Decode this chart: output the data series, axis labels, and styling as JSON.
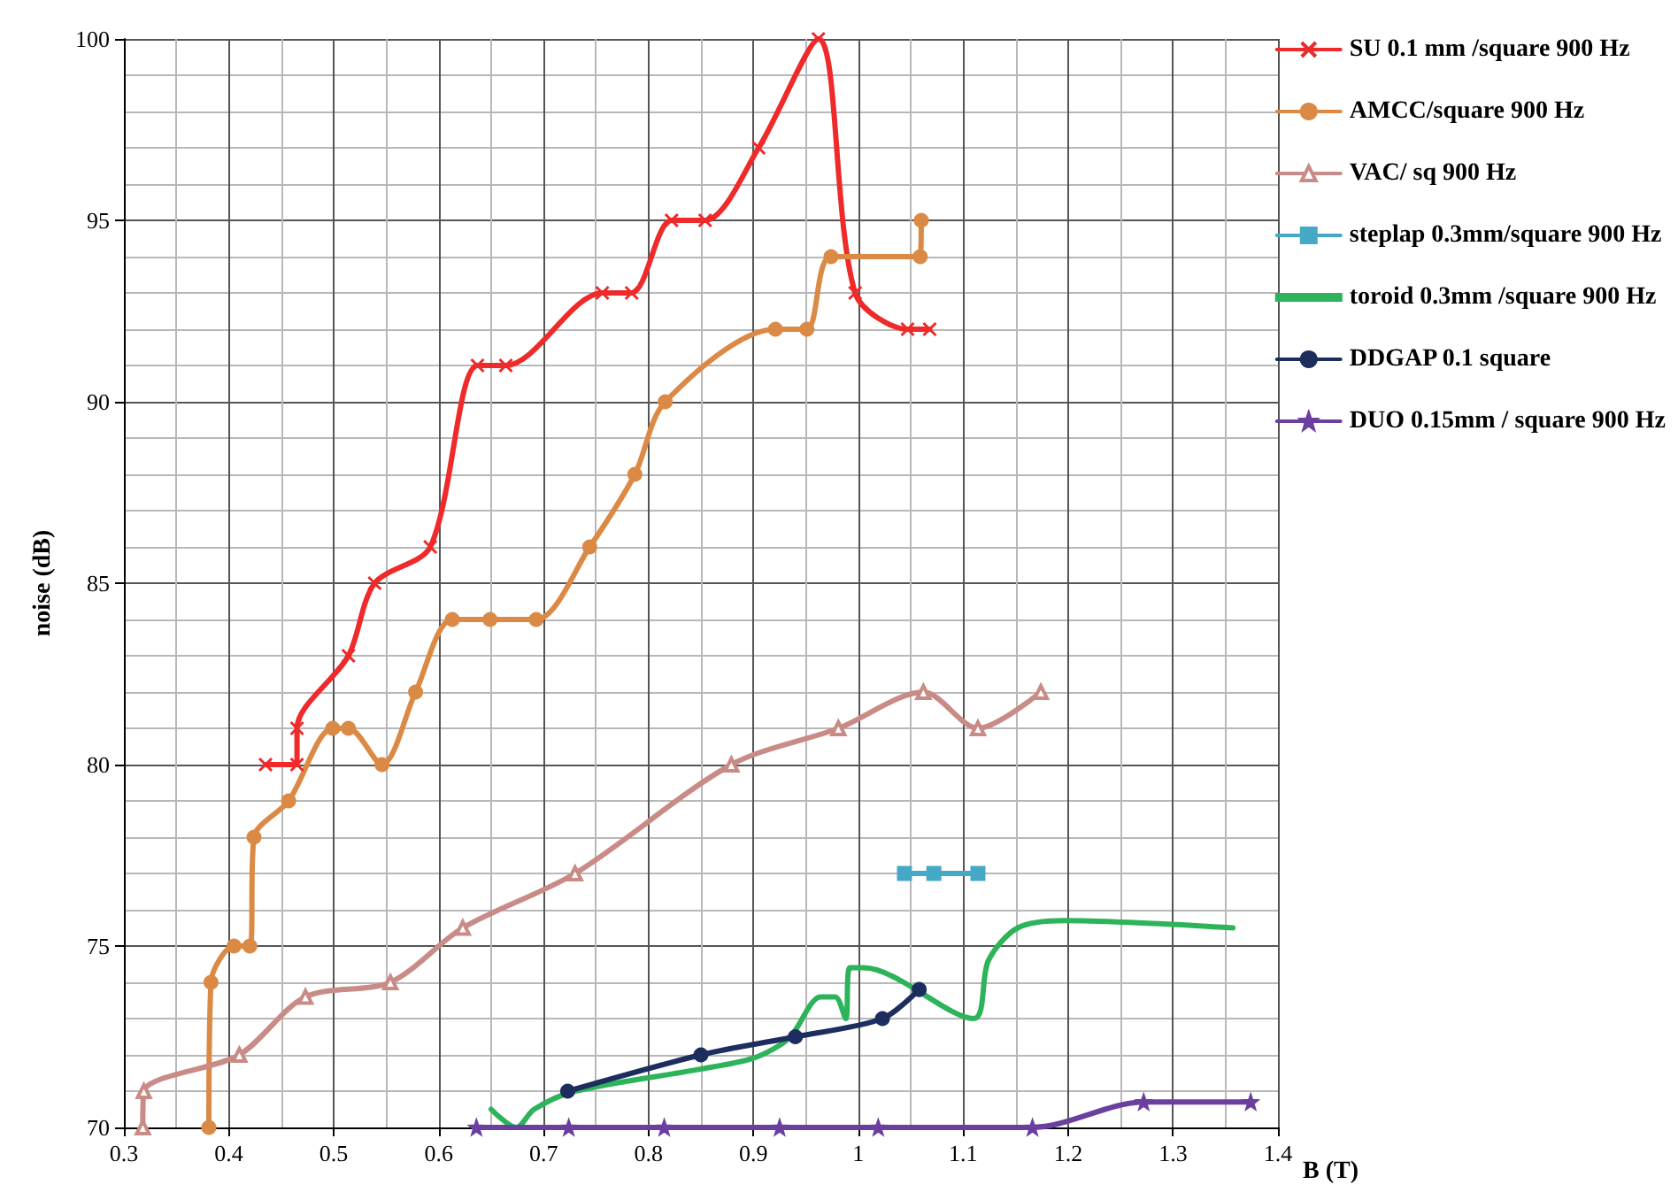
{
  "chart_data": {
    "type": "line",
    "xlabel": "B (T)",
    "ylabel": "noise (dB)",
    "xlim": [
      0.3,
      1.4
    ],
    "ylim": [
      70,
      100
    ],
    "xticks": [
      0.3,
      0.4,
      0.5,
      0.6,
      0.7,
      0.8,
      0.9,
      {
        "value": 1,
        "label": "1"
      },
      1.1,
      1.2,
      1.3,
      1.4
    ],
    "yticks": [
      70,
      75,
      80,
      85,
      90,
      95,
      100
    ],
    "grid": true,
    "legend": "right",
    "series": [
      {
        "name": "SU 0.1 mm /square 900 Hz",
        "color": "#ee2a2a",
        "marker": "cross",
        "x": [
          0.435,
          0.465,
          0.465,
          0.514,
          0.539,
          0.592,
          0.637,
          0.664,
          0.756,
          0.784,
          0.822,
          0.854,
          0.905,
          0.962,
          0.997,
          1.047,
          1.068
        ],
        "values": [
          80,
          80,
          81,
          83,
          85,
          86,
          91,
          91,
          93,
          93,
          95,
          95,
          97,
          100,
          93,
          92,
          92
        ]
      },
      {
        "name": "AMCC/square 900 Hz",
        "color": "#db8a46",
        "marker": "circle",
        "x": [
          0.381,
          0.383,
          0.405,
          0.42,
          0.424,
          0.457,
          0.499,
          0.514,
          0.546,
          0.578,
          0.613,
          0.649,
          0.693,
          0.744,
          0.787,
          0.816,
          0.921,
          0.951,
          0.974,
          1.059,
          1.06
        ],
        "values": [
          70,
          74,
          75,
          75,
          78,
          79,
          81,
          81,
          80,
          82,
          84,
          84,
          84,
          86,
          88,
          90,
          92,
          92,
          94,
          94,
          95
        ]
      },
      {
        "name": "VAC/ sq 900 Hz",
        "color": "#c98b86",
        "marker": "triangle",
        "x": [
          0.318,
          0.319,
          0.41,
          0.473,
          0.554,
          0.623,
          0.73,
          0.879,
          0.981,
          1.062,
          1.114,
          1.174
        ],
        "values": [
          70,
          71,
          72,
          73.6,
          74,
          75.5,
          77,
          80,
          81,
          82,
          81,
          82
        ]
      },
      {
        "name": "steplap 0.3mm/square 900 Hz",
        "color": "#45a9c6",
        "marker": "square",
        "x": [
          1.044,
          1.072,
          1.114
        ],
        "values": [
          77,
          77,
          77
        ]
      },
      {
        "name": "toroid 0.3mm /square 900 Hz",
        "color": "#2db35a",
        "marker": "none",
        "x": [
          0.65,
          0.674,
          0.691,
          0.73,
          0.848,
          0.899,
          0.927,
          0.938,
          0.964,
          0.978,
          0.988,
          0.992,
          1.005,
          1.11,
          1.124,
          1.152,
          1.197,
          1.298,
          1.357
        ],
        "values": [
          70.5,
          70,
          70.5,
          71,
          71.6,
          71.9,
          72.3,
          72.6,
          73.6,
          73.6,
          73,
          74.4,
          74.4,
          73,
          74.6,
          75.5,
          75.7,
          75.6,
          75.5
        ]
      },
      {
        "name": "DDGAP 0.1 square",
        "color": "#1c2d5e",
        "marker": "circle",
        "x": [
          0.723,
          0.85,
          0.94,
          1.023,
          1.058
        ],
        "values": [
          71,
          72,
          72.5,
          73,
          73.8
        ]
      },
      {
        "name": "DUO 0.15mm / square 900 Hz",
        "color": "#6a3fa0",
        "marker": "star",
        "x": [
          0.636,
          0.724,
          0.815,
          0.925,
          1.019,
          1.166,
          1.272,
          1.374
        ],
        "values": [
          70,
          70,
          70,
          70,
          70,
          70,
          70.7,
          70.7
        ]
      }
    ]
  }
}
